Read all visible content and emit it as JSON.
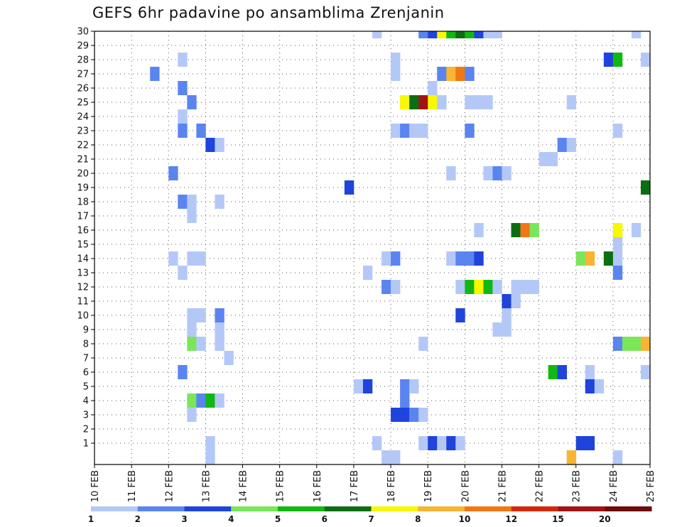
{
  "chart_data": {
    "type": "heatmap",
    "title": "GEFS 6hr padavine po ansamblima Zrenjanin",
    "y_ticks": [
      "1",
      "2",
      "3",
      "4",
      "5",
      "6",
      "7",
      "8",
      "9",
      "10",
      "11",
      "12",
      "13",
      "14",
      "15",
      "16",
      "17",
      "18",
      "19",
      "20",
      "21",
      "22",
      "23",
      "24",
      "25",
      "26",
      "27",
      "28",
      "29",
      "30"
    ],
    "y_range": [
      0,
      30
    ],
    "x_ticks": [
      "10 FEB",
      "11 FEB",
      "12 FEB",
      "13 FEB",
      "14 FEB",
      "15 FEB",
      "16 FEB",
      "17 FEB",
      "18 FEB",
      "19 FEB",
      "20 FEB",
      "21 FEB",
      "22 FEB",
      "23 FEB",
      "24 FEB",
      "25 FEB"
    ],
    "x_range_days": [
      0,
      15
    ],
    "grid": true,
    "legend": {
      "placement": "bottom",
      "colors": [
        "#b4c8f8",
        "#5a84f0",
        "#1e44dc",
        "#7ae65a",
        "#12b812",
        "#0c6e12",
        "#f8f800",
        "#f8b432",
        "#f07814",
        "#d2280a",
        "#a01414",
        "#6e0a0a"
      ],
      "labels": [
        "1",
        "2",
        "3",
        "4",
        "5",
        "6",
        "7",
        "8",
        "10",
        "12",
        "15",
        "20"
      ]
    },
    "cells": [
      {
        "t": 17.5,
        "y": 30,
        "l": 1
      },
      {
        "t": 18.75,
        "y": 30,
        "l": 2
      },
      {
        "t": 19.0,
        "y": 30,
        "l": 3
      },
      {
        "t": 19.25,
        "y": 30,
        "l": 7
      },
      {
        "t": 19.5,
        "y": 30,
        "l": 5
      },
      {
        "t": 19.75,
        "y": 30,
        "l": 6
      },
      {
        "t": 20.0,
        "y": 30,
        "l": 5
      },
      {
        "t": 20.25,
        "y": 30,
        "l": 3
      },
      {
        "t": 20.5,
        "y": 30,
        "l": 1
      },
      {
        "t": 20.75,
        "y": 30,
        "l": 1
      },
      {
        "t": 24.5,
        "y": 30,
        "l": 1
      },
      {
        "t": 12.25,
        "y": 28,
        "l": 1
      },
      {
        "t": 18.0,
        "y": 28,
        "l": 1
      },
      {
        "t": 23.75,
        "y": 28,
        "l": 3
      },
      {
        "t": 24.0,
        "y": 28,
        "l": 5
      },
      {
        "t": 24.75,
        "y": 28,
        "l": 1
      },
      {
        "t": 11.5,
        "y": 27,
        "l": 2
      },
      {
        "t": 18.0,
        "y": 27,
        "l": 1
      },
      {
        "t": 19.25,
        "y": 27,
        "l": 2
      },
      {
        "t": 19.5,
        "y": 27,
        "l": 8
      },
      {
        "t": 19.75,
        "y": 27,
        "l": 9
      },
      {
        "t": 20.0,
        "y": 27,
        "l": 2
      },
      {
        "t": 12.25,
        "y": 26,
        "l": 2
      },
      {
        "t": 19.0,
        "y": 26,
        "l": 1
      },
      {
        "t": 12.5,
        "y": 25,
        "l": 2
      },
      {
        "t": 18.25,
        "y": 25,
        "l": 7
      },
      {
        "t": 18.5,
        "y": 25,
        "l": 6
      },
      {
        "t": 18.75,
        "y": 25,
        "l": 11
      },
      {
        "t": 19.0,
        "y": 25,
        "l": 7
      },
      {
        "t": 19.25,
        "y": 25,
        "l": 1
      },
      {
        "t": 20.0,
        "y": 25,
        "l": 1
      },
      {
        "t": 20.25,
        "y": 25,
        "l": 1
      },
      {
        "t": 20.5,
        "y": 25,
        "l": 1
      },
      {
        "t": 22.75,
        "y": 25,
        "l": 1
      },
      {
        "t": 12.25,
        "y": 24,
        "l": 1
      },
      {
        "t": 12.25,
        "y": 23,
        "l": 2
      },
      {
        "t": 12.75,
        "y": 23,
        "l": 2
      },
      {
        "t": 18.0,
        "y": 23,
        "l": 1
      },
      {
        "t": 18.25,
        "y": 23,
        "l": 2
      },
      {
        "t": 18.5,
        "y": 23,
        "l": 1
      },
      {
        "t": 18.75,
        "y": 23,
        "l": 1
      },
      {
        "t": 20.0,
        "y": 23,
        "l": 2
      },
      {
        "t": 24.0,
        "y": 23,
        "l": 1
      },
      {
        "t": 13.0,
        "y": 22,
        "l": 3
      },
      {
        "t": 13.25,
        "y": 22,
        "l": 1
      },
      {
        "t": 22.5,
        "y": 22,
        "l": 2
      },
      {
        "t": 22.75,
        "y": 22,
        "l": 1
      },
      {
        "t": 22.0,
        "y": 21,
        "l": 1
      },
      {
        "t": 22.25,
        "y": 21,
        "l": 1
      },
      {
        "t": 12.0,
        "y": 20,
        "l": 2
      },
      {
        "t": 19.5,
        "y": 20,
        "l": 1
      },
      {
        "t": 20.5,
        "y": 20,
        "l": 1
      },
      {
        "t": 20.75,
        "y": 20,
        "l": 2
      },
      {
        "t": 21.0,
        "y": 20,
        "l": 1
      },
      {
        "t": 16.75,
        "y": 19,
        "l": 3
      },
      {
        "t": 24.75,
        "y": 19,
        "l": 6
      },
      {
        "t": 12.25,
        "y": 18,
        "l": 2
      },
      {
        "t": 12.5,
        "y": 18,
        "l": 1
      },
      {
        "t": 13.25,
        "y": 18,
        "l": 1
      },
      {
        "t": 12.5,
        "y": 17,
        "l": 1
      },
      {
        "t": 20.25,
        "y": 16,
        "l": 1
      },
      {
        "t": 21.25,
        "y": 16,
        "l": 6
      },
      {
        "t": 21.5,
        "y": 16,
        "l": 9
      },
      {
        "t": 21.75,
        "y": 16,
        "l": 4
      },
      {
        "t": 24.0,
        "y": 16,
        "l": 7
      },
      {
        "t": 24.5,
        "y": 16,
        "l": 1
      },
      {
        "t": 24.0,
        "y": 15,
        "l": 1
      },
      {
        "t": 12.0,
        "y": 14,
        "l": 1
      },
      {
        "t": 12.5,
        "y": 14,
        "l": 1
      },
      {
        "t": 12.75,
        "y": 14,
        "l": 1
      },
      {
        "t": 17.75,
        "y": 14,
        "l": 1
      },
      {
        "t": 18.0,
        "y": 14,
        "l": 2
      },
      {
        "t": 19.5,
        "y": 14,
        "l": 1
      },
      {
        "t": 19.75,
        "y": 14,
        "l": 2
      },
      {
        "t": 20.0,
        "y": 14,
        "l": 2
      },
      {
        "t": 20.25,
        "y": 14,
        "l": 3
      },
      {
        "t": 23.0,
        "y": 14,
        "l": 4
      },
      {
        "t": 23.25,
        "y": 14,
        "l": 8
      },
      {
        "t": 23.75,
        "y": 14,
        "l": 6
      },
      {
        "t": 24.0,
        "y": 14,
        "l": 1
      },
      {
        "t": 12.25,
        "y": 13,
        "l": 1
      },
      {
        "t": 17.25,
        "y": 13,
        "l": 1
      },
      {
        "t": 24.0,
        "y": 13,
        "l": 2
      },
      {
        "t": 17.75,
        "y": 12,
        "l": 2
      },
      {
        "t": 18.0,
        "y": 12,
        "l": 1
      },
      {
        "t": 19.75,
        "y": 12,
        "l": 1
      },
      {
        "t": 20.0,
        "y": 12,
        "l": 5
      },
      {
        "t": 20.25,
        "y": 12,
        "l": 7
      },
      {
        "t": 20.5,
        "y": 12,
        "l": 5
      },
      {
        "t": 20.75,
        "y": 12,
        "l": 1
      },
      {
        "t": 21.25,
        "y": 12,
        "l": 1
      },
      {
        "t": 21.5,
        "y": 12,
        "l": 1
      },
      {
        "t": 21.75,
        "y": 12,
        "l": 1
      },
      {
        "t": 21.0,
        "y": 11,
        "l": 3
      },
      {
        "t": 21.25,
        "y": 11,
        "l": 1
      },
      {
        "t": 12.5,
        "y": 10,
        "l": 1
      },
      {
        "t": 12.75,
        "y": 10,
        "l": 1
      },
      {
        "t": 13.25,
        "y": 10,
        "l": 2
      },
      {
        "t": 19.75,
        "y": 10,
        "l": 3
      },
      {
        "t": 21.0,
        "y": 10,
        "l": 1
      },
      {
        "t": 12.5,
        "y": 9,
        "l": 1
      },
      {
        "t": 13.25,
        "y": 9,
        "l": 1
      },
      {
        "t": 20.75,
        "y": 9,
        "l": 1
      },
      {
        "t": 21.0,
        "y": 9,
        "l": 1
      },
      {
        "t": 12.5,
        "y": 8,
        "l": 4
      },
      {
        "t": 12.75,
        "y": 8,
        "l": 1
      },
      {
        "t": 13.25,
        "y": 8,
        "l": 1
      },
      {
        "t": 18.75,
        "y": 8,
        "l": 1
      },
      {
        "t": 24.0,
        "y": 8,
        "l": 2
      },
      {
        "t": 24.25,
        "y": 8,
        "l": 4
      },
      {
        "t": 24.5,
        "y": 8,
        "l": 4
      },
      {
        "t": 24.75,
        "y": 8,
        "l": 8
      },
      {
        "t": 13.5,
        "y": 7,
        "l": 1
      },
      {
        "t": 12.25,
        "y": 6,
        "l": 2
      },
      {
        "t": 22.25,
        "y": 6,
        "l": 5
      },
      {
        "t": 22.5,
        "y": 6,
        "l": 3
      },
      {
        "t": 23.25,
        "y": 6,
        "l": 1
      },
      {
        "t": 24.75,
        "y": 6,
        "l": 1
      },
      {
        "t": 17.0,
        "y": 5,
        "l": 1
      },
      {
        "t": 17.25,
        "y": 5,
        "l": 3
      },
      {
        "t": 18.25,
        "y": 5,
        "l": 2
      },
      {
        "t": 18.5,
        "y": 5,
        "l": 1
      },
      {
        "t": 23.25,
        "y": 5,
        "l": 3
      },
      {
        "t": 23.5,
        "y": 5,
        "l": 1
      },
      {
        "t": 12.5,
        "y": 4,
        "l": 4
      },
      {
        "t": 12.75,
        "y": 4,
        "l": 2
      },
      {
        "t": 13.0,
        "y": 4,
        "l": 5
      },
      {
        "t": 13.25,
        "y": 4,
        "l": 1
      },
      {
        "t": 18.25,
        "y": 4,
        "l": 2
      },
      {
        "t": 12.5,
        "y": 3,
        "l": 1
      },
      {
        "t": 18.0,
        "y": 3,
        "l": 3
      },
      {
        "t": 18.25,
        "y": 3,
        "l": 3
      },
      {
        "t": 18.5,
        "y": 3,
        "l": 2
      },
      {
        "t": 18.75,
        "y": 3,
        "l": 1
      },
      {
        "t": 13.0,
        "y": 1,
        "l": 1
      },
      {
        "t": 17.5,
        "y": 1,
        "l": 1
      },
      {
        "t": 18.75,
        "y": 1,
        "l": 1
      },
      {
        "t": 19.0,
        "y": 1,
        "l": 3
      },
      {
        "t": 19.25,
        "y": 1,
        "l": 1
      },
      {
        "t": 19.5,
        "y": 1,
        "l": 3
      },
      {
        "t": 19.75,
        "y": 1,
        "l": 1
      },
      {
        "t": 23.0,
        "y": 1,
        "l": 3
      },
      {
        "t": 23.25,
        "y": 1,
        "l": 3
      },
      {
        "t": 13.0,
        "y": 0,
        "l": 1
      },
      {
        "t": 17.75,
        "y": 0,
        "l": 1
      },
      {
        "t": 18.0,
        "y": 0,
        "l": 1
      },
      {
        "t": 22.75,
        "y": 0,
        "l": 8
      },
      {
        "t": 24.0,
        "y": 0,
        "l": 1
      }
    ]
  }
}
